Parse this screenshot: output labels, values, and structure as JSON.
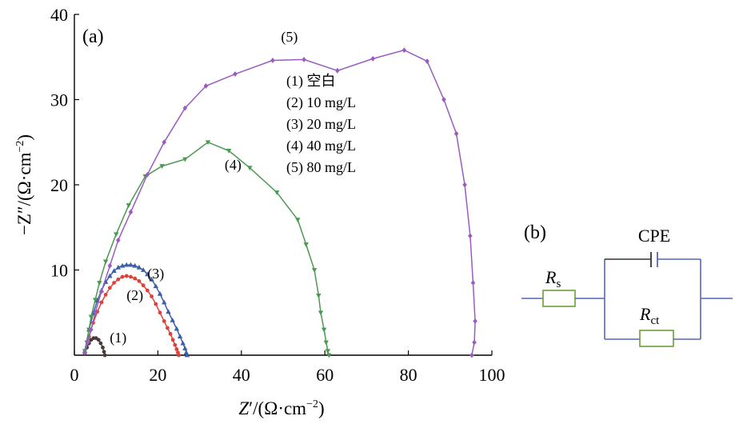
{
  "chart_data": {
    "type": "scatter",
    "panel_label": "(a)",
    "xlabel_html": [
      "Z",
      "′/(Ω·cm",
      "−2",
      ")"
    ],
    "ylabel_html": [
      "−Z",
      "″/(Ω·cm",
      "−2",
      ")"
    ],
    "xlim": [
      0,
      100
    ],
    "ylim": [
      0,
      40
    ],
    "xticks": [
      0,
      20,
      40,
      60,
      80,
      100
    ],
    "yticks": [
      10,
      20,
      30,
      40
    ],
    "grid": false,
    "legend_position": "top-center",
    "legend": [
      "(1)  空白",
      "(2)  10 mg/L",
      "(3)  20 mg/L",
      "(4)  40 mg/L",
      "(5)  80 mg/L"
    ],
    "series": [
      {
        "name": "(1)",
        "color": "#4a3b3b",
        "marker": "circle",
        "label_at": [
          10.5,
          1.5
        ],
        "x": [
          2.5,
          3.0,
          3.5,
          4.0,
          4.6,
          5.2,
          5.8,
          6.3,
          6.8,
          7.1,
          7.3
        ],
        "y": [
          0.2,
          0.9,
          1.4,
          1.8,
          2.0,
          2.0,
          1.8,
          1.4,
          0.9,
          0.4,
          0.0
        ]
      },
      {
        "name": "(2)",
        "color": "#e0403a",
        "marker": "circle",
        "label_at": [
          14.5,
          6.5
        ],
        "x": [
          2.5,
          3.5,
          4.5,
          5.5,
          6.5,
          7.5,
          8.5,
          9.5,
          10.5,
          11.5,
          12.5,
          13.5,
          14.5,
          15.5,
          16.5,
          17.5,
          18.5,
          19.5,
          20.5,
          21.5,
          22.3,
          23.0,
          23.6,
          24.1,
          24.5,
          24.8,
          25.0
        ],
        "y": [
          0.3,
          2.2,
          3.8,
          5.1,
          6.2,
          7.1,
          7.9,
          8.5,
          8.9,
          9.2,
          9.3,
          9.2,
          9.0,
          8.7,
          8.2,
          7.6,
          6.9,
          6.0,
          5.0,
          4.0,
          3.2,
          2.5,
          1.8,
          1.2,
          0.7,
          0.3,
          0.0
        ]
      },
      {
        "name": "(3)",
        "color": "#3b5fa8",
        "marker": "triangle-up",
        "label_at": [
          19.5,
          9.0
        ],
        "x": [
          2.5,
          3.5,
          4.5,
          5.5,
          6.5,
          7.5,
          8.5,
          9.5,
          10.5,
          11.5,
          12.5,
          13.5,
          14.5,
          15.5,
          16.5,
          17.5,
          18.5,
          19.5,
          20.5,
          21.5,
          22.5,
          23.5,
          24.5,
          25.3,
          26.0,
          26.5,
          26.8,
          27.0
        ],
        "y": [
          0.5,
          3.0,
          4.9,
          6.4,
          7.6,
          8.6,
          9.3,
          9.9,
          10.3,
          10.5,
          10.6,
          10.6,
          10.5,
          10.3,
          10.0,
          9.5,
          8.9,
          8.1,
          7.2,
          6.2,
          5.1,
          4.1,
          3.1,
          2.2,
          1.4,
          0.8,
          0.3,
          0.0
        ]
      },
      {
        "name": "(4)",
        "color": "#4a9a4f",
        "marker": "triangle-down",
        "label_at": [
          38.0,
          21.8
        ],
        "x": [
          2.5,
          3.0,
          3.5,
          4.0,
          5.0,
          6.0,
          7.5,
          10.0,
          13.0,
          17.0,
          21.0,
          26.5,
          32.0,
          37.0,
          42.0,
          48.5,
          53.5,
          55.5,
          57.5,
          58.5,
          59.0,
          59.8,
          60.3,
          60.7,
          61.0
        ],
        "y": [
          0.5,
          1.5,
          3.0,
          4.5,
          6.5,
          8.5,
          11.0,
          14.2,
          17.6,
          21.0,
          22.2,
          23.0,
          25.0,
          24.0,
          22.0,
          19.1,
          15.9,
          13.0,
          10.0,
          7.0,
          5.0,
          3.0,
          1.5,
          0.5,
          0.0
        ]
      },
      {
        "name": "(5)",
        "color": "#9a5cc0",
        "marker": "diamond",
        "label_at": [
          51.5,
          36.8
        ],
        "x": [
          2.5,
          3.2,
          4.0,
          5.0,
          6.5,
          8.5,
          10.5,
          13.5,
          17.5,
          21.5,
          26.5,
          31.5,
          38.5,
          47.5,
          55.0,
          63.0,
          71.5,
          79.0,
          84.5,
          88.5,
          91.5,
          93.5,
          94.8,
          95.5,
          96.0,
          95.8,
          95.2
        ],
        "y": [
          0.3,
          1.5,
          3.0,
          5.0,
          7.5,
          10.5,
          13.5,
          16.8,
          21.2,
          25.0,
          29.0,
          31.6,
          33.0,
          34.6,
          34.7,
          33.4,
          34.8,
          35.8,
          34.5,
          30.0,
          26.0,
          20.0,
          14.0,
          8.5,
          4.0,
          1.5,
          0.0
        ]
      }
    ]
  },
  "circuit": {
    "panel_label": "(b)",
    "cpe_label": "CPE",
    "rs_main": "R",
    "rs_sub": "s",
    "rct_main": "R",
    "rct_sub": "ct"
  }
}
